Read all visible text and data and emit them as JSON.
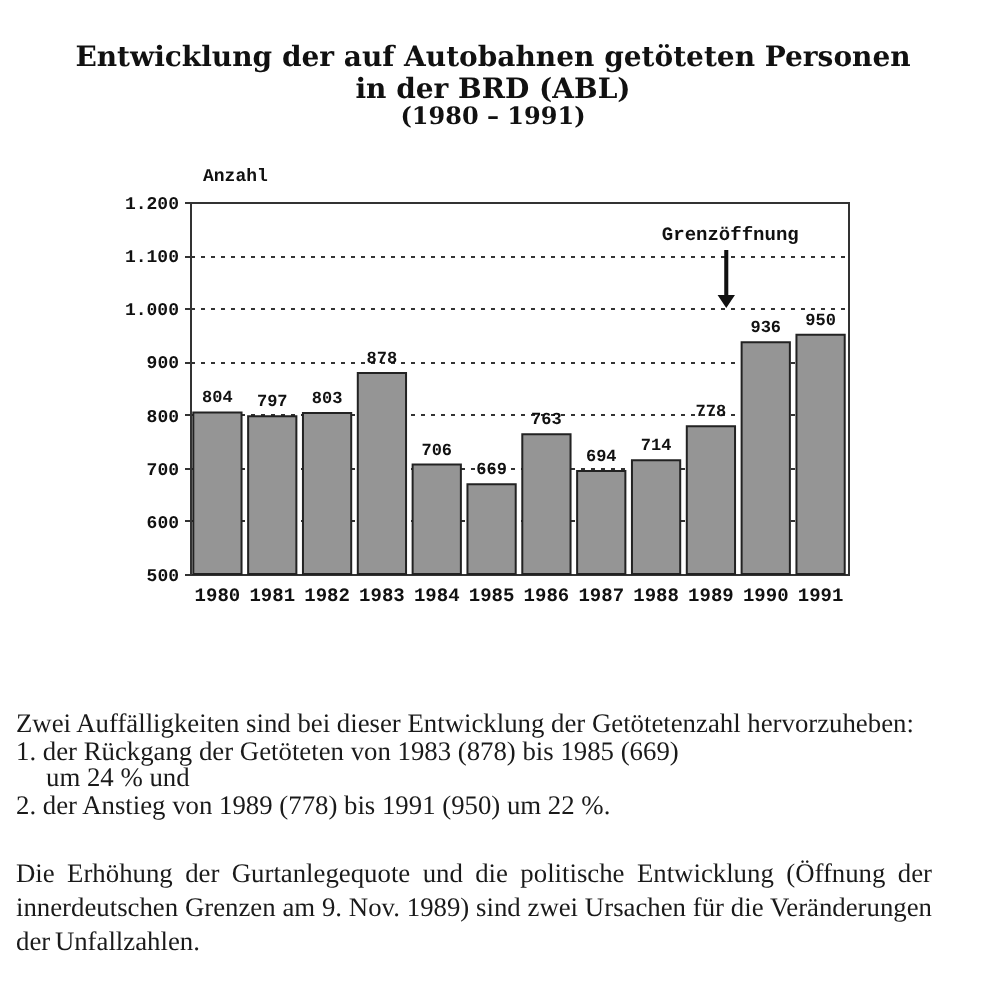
{
  "chart_data": {
    "type": "bar",
    "title": "Entwicklung der auf Autobahnen getöteten Personen in der BRD (ABL)",
    "subtitle": "(1980 – 1991)",
    "ylabel": "Anzahl",
    "categories": [
      "1980",
      "1981",
      "1982",
      "1983",
      "1984",
      "1985",
      "1986",
      "1987",
      "1988",
      "1989",
      "1990",
      "1991"
    ],
    "values": [
      804,
      797,
      803,
      878,
      706,
      669,
      763,
      694,
      714,
      778,
      936,
      950
    ],
    "color": "#959595",
    "ylim": [
      500,
      1200
    ],
    "yticks": [
      500,
      600,
      700,
      800,
      900,
      {
        "value": 1000,
        "label": "1.000"
      },
      {
        "value": 1100,
        "label": "1.100"
      },
      {
        "value": 1200,
        "label": "1.200"
      }
    ],
    "grid": "y",
    "data_labels": true,
    "annotations": [
      "Grenzöffnung",
      "Zwei Auffälligkeiten sind bei dieser Entwicklung der Getötetenzahl hervorzuheben:",
      "1. der Rückgang der Getöteten von 1983 (878) bis 1985 (669) um 24 % und",
      "2. der Anstieg von 1989 (778) bis 1991 (950) um 22 %.",
      "Die Erhöhung der Gurtanlegequote und die politische Entwicklung (Öffnung der innerdeutschen Grenzen am 9. Nov. 1989) sind zwei Ursachen für die Veränderungen der Unfallzahlen."
    ]
  }
}
